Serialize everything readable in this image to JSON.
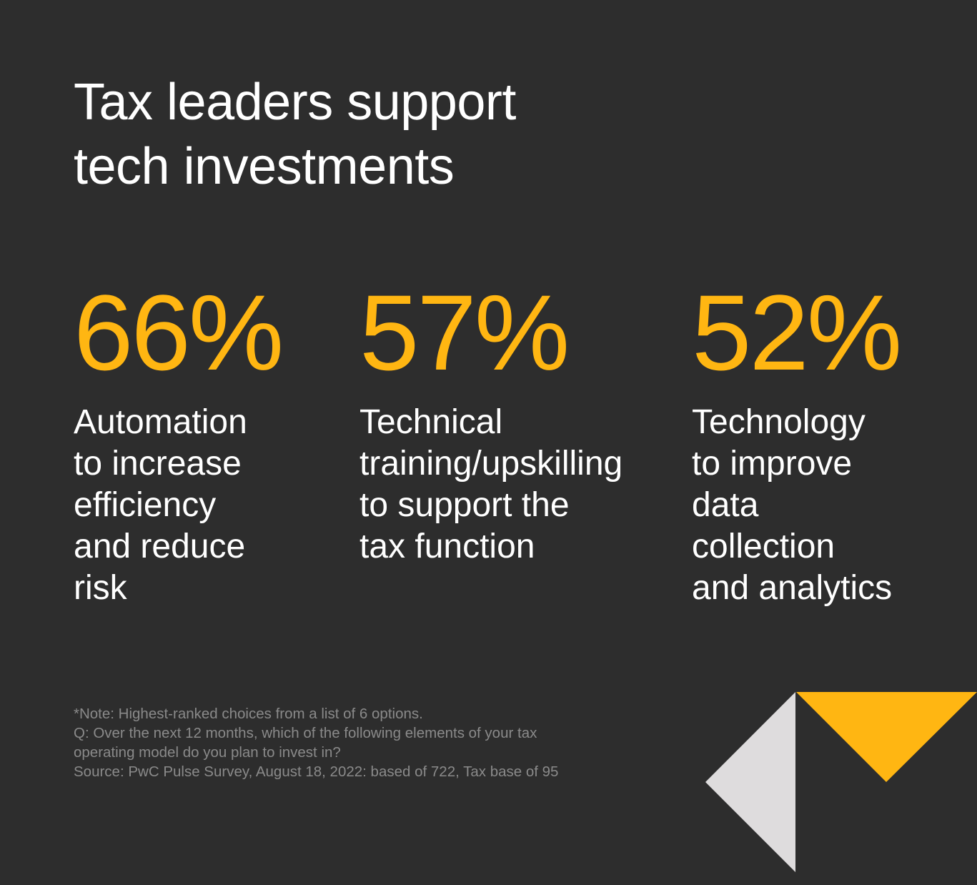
{
  "title_lines": [
    "Tax leaders support",
    "tech investments"
  ],
  "stats": [
    {
      "value": "66%",
      "description_lines": [
        "Automation",
        "to increase",
        "efficiency",
        "and reduce",
        "risk"
      ]
    },
    {
      "value": "57%",
      "description_lines": [
        "Technical",
        "training/upskilling",
        "to support the",
        "tax function"
      ]
    },
    {
      "value": "52%",
      "description_lines": [
        "Technology",
        "to improve",
        "data",
        "collection",
        "and analytics"
      ]
    }
  ],
  "notes": [
    "*Note: Highest-ranked choices from a list of 6 options.",
    "Q: Over the next 12 months, which of the following elements of your tax",
    "operating model do you plan to invest in?",
    "Source: PwC Pulse Survey, August 18, 2022: based of 722, Tax base of 95"
  ],
  "colors": {
    "background": "#2d2d2d",
    "accent": "#ffb612",
    "light_shape": "#dedcdd",
    "note_text": "#8a8a8a"
  }
}
